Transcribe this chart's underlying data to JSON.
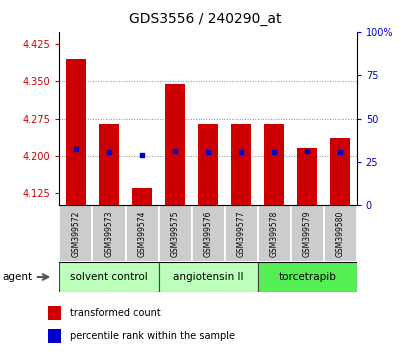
{
  "title": "GDS3556 / 240290_at",
  "samples": [
    "GSM399572",
    "GSM399573",
    "GSM399574",
    "GSM399575",
    "GSM399576",
    "GSM399577",
    "GSM399578",
    "GSM399579",
    "GSM399580"
  ],
  "transformed_count": [
    4.395,
    4.265,
    4.135,
    4.345,
    4.265,
    4.265,
    4.265,
    4.215,
    4.235
  ],
  "percentile_rank_left": [
    4.213,
    4.207,
    4.202,
    4.21,
    4.207,
    4.208,
    4.207,
    4.21,
    4.207
  ],
  "ylim_left": [
    4.1,
    4.45
  ],
  "ylim_right": [
    0,
    100
  ],
  "yticks_left": [
    4.125,
    4.2,
    4.275,
    4.35,
    4.425
  ],
  "yticks_right": [
    0,
    25,
    50,
    75,
    100
  ],
  "bar_bottom": 4.1,
  "bar_color": "#cc0000",
  "dot_color": "#0000cc",
  "bar_width": 0.6,
  "group_labels": [
    "solvent control",
    "angiotensin II",
    "torcetrapib"
  ],
  "group_starts": [
    0,
    3,
    6
  ],
  "group_ends": [
    2,
    5,
    8
  ],
  "group_colors": [
    "#bbffbb",
    "#bbffbb",
    "#55ee55"
  ],
  "sample_box_color": "#cccccc",
  "agent_label": "agent",
  "legend_red_label": "transformed count",
  "legend_blue_label": "percentile rank within the sample",
  "grid_color": "#888888",
  "tick_color_left": "#cc0000",
  "tick_color_right": "#0000cc",
  "title_fontsize": 10,
  "tick_fontsize": 7,
  "sample_fontsize": 5.5,
  "group_fontsize": 7.5,
  "legend_fontsize": 7
}
